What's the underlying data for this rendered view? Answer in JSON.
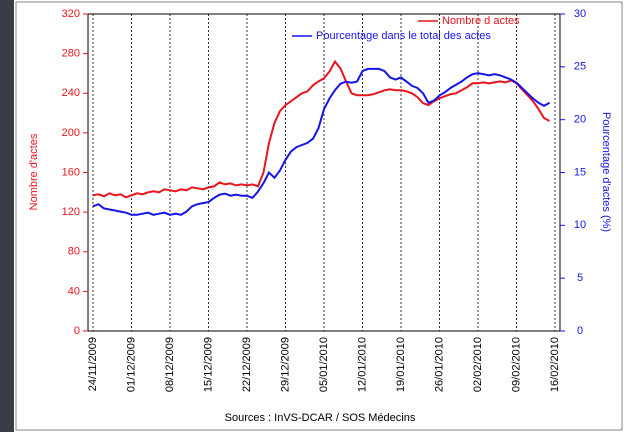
{
  "chart_data": {
    "type": "line",
    "categories": [
      "24/11/2009",
      null,
      null,
      null,
      null,
      null,
      null,
      "01/12/2009",
      null,
      null,
      null,
      null,
      null,
      null,
      "08/12/2009",
      null,
      null,
      null,
      null,
      null,
      null,
      "15/12/2009",
      null,
      null,
      null,
      null,
      null,
      null,
      "22/12/2009",
      null,
      null,
      null,
      null,
      null,
      null,
      "29/12/2009",
      null,
      null,
      null,
      null,
      null,
      null,
      "05/01/2010",
      null,
      null,
      null,
      null,
      null,
      null,
      "12/01/2010",
      null,
      null,
      null,
      null,
      null,
      null,
      "19/01/2010",
      null,
      null,
      null,
      null,
      null,
      null,
      "26/01/2010",
      null,
      null,
      null,
      null,
      null,
      null,
      "02/02/2010",
      null,
      null,
      null,
      null,
      null,
      null,
      "09/02/2010",
      null,
      null,
      null,
      null,
      null,
      null,
      "16/02/2010"
    ],
    "series": [
      {
        "name": "Nombre d actes",
        "color": "#e8141e",
        "values": [
          137,
          138,
          136,
          139,
          137,
          138,
          135,
          137,
          139,
          138,
          140,
          141,
          140,
          143,
          142,
          141,
          143,
          142,
          145,
          144,
          143,
          145,
          146,
          150,
          148,
          149,
          147,
          148,
          147,
          148,
          146,
          160,
          190,
          210,
          222,
          228,
          232,
          236,
          240,
          242,
          248,
          252,
          255,
          262,
          272,
          265,
          252,
          240,
          238,
          238,
          238,
          239,
          241,
          243,
          244,
          243,
          243,
          242,
          240,
          236,
          230,
          228,
          232,
          235,
          237,
          239,
          240,
          243,
          246,
          250,
          250,
          251,
          250,
          251,
          252,
          251,
          253,
          250,
          244,
          238,
          232,
          224,
          215,
          212,
          null
        ]
      },
      {
        "name": "Pourcentage dans le total des actes",
        "color": "#1414e6",
        "axis": "y2",
        "values": [
          11.8,
          12.0,
          11.6,
          11.5,
          11.4,
          11.3,
          11.2,
          11.0,
          11.0,
          11.1,
          11.2,
          11.0,
          11.1,
          11.2,
          11.0,
          11.1,
          11.0,
          11.3,
          11.8,
          12.0,
          12.1,
          12.2,
          12.6,
          12.9,
          13.0,
          12.8,
          12.9,
          12.8,
          12.8,
          12.6,
          13.2,
          14.0,
          15.0,
          14.5,
          15.2,
          16.2,
          17.0,
          17.4,
          17.6,
          17.8,
          18.2,
          19.2,
          21.0,
          22.0,
          22.8,
          23.4,
          23.6,
          23.5,
          23.6,
          24.6,
          24.8,
          24.8,
          24.8,
          24.6,
          24.0,
          23.8,
          24.0,
          23.6,
          23.2,
          23.0,
          22.5,
          21.6,
          21.8,
          22.3,
          22.6,
          23.0,
          23.3,
          23.6,
          24.0,
          24.3,
          24.4,
          24.3,
          24.2,
          24.3,
          24.2,
          24.0,
          23.8,
          23.5,
          23.0,
          22.5,
          22.0,
          21.6,
          21.3,
          21.6,
          null
        ]
      }
    ],
    "ylabel": "Nombre d'actes",
    "y2label": "Pourcentage d'actes (%)",
    "ylim": [
      0,
      320
    ],
    "yticks": [
      0,
      40,
      80,
      120,
      160,
      200,
      240,
      280,
      320
    ],
    "y2lim": [
      0,
      30
    ],
    "y2ticks": [
      0,
      5,
      10,
      15,
      20,
      25,
      30
    ],
    "xgrid": true,
    "legend": "upper right",
    "source": "Sources : InVS-DCAR / SOS Médecins"
  }
}
